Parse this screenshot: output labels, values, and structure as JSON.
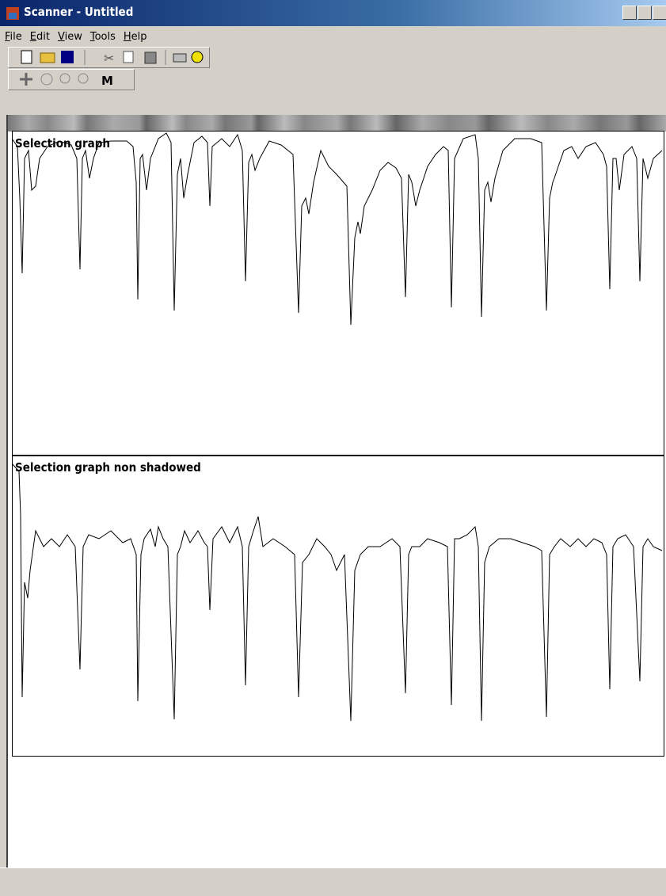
{
  "window": {
    "title": "Scanner - Untitled"
  },
  "menu": [
    "File",
    "Edit",
    "View",
    "Tools",
    "Help"
  ],
  "toolbar2": {
    "measure_button": "M"
  },
  "graphs": [
    {
      "title": "Selection graph"
    },
    {
      "title": "Selection graph non shadowed"
    }
  ]
}
